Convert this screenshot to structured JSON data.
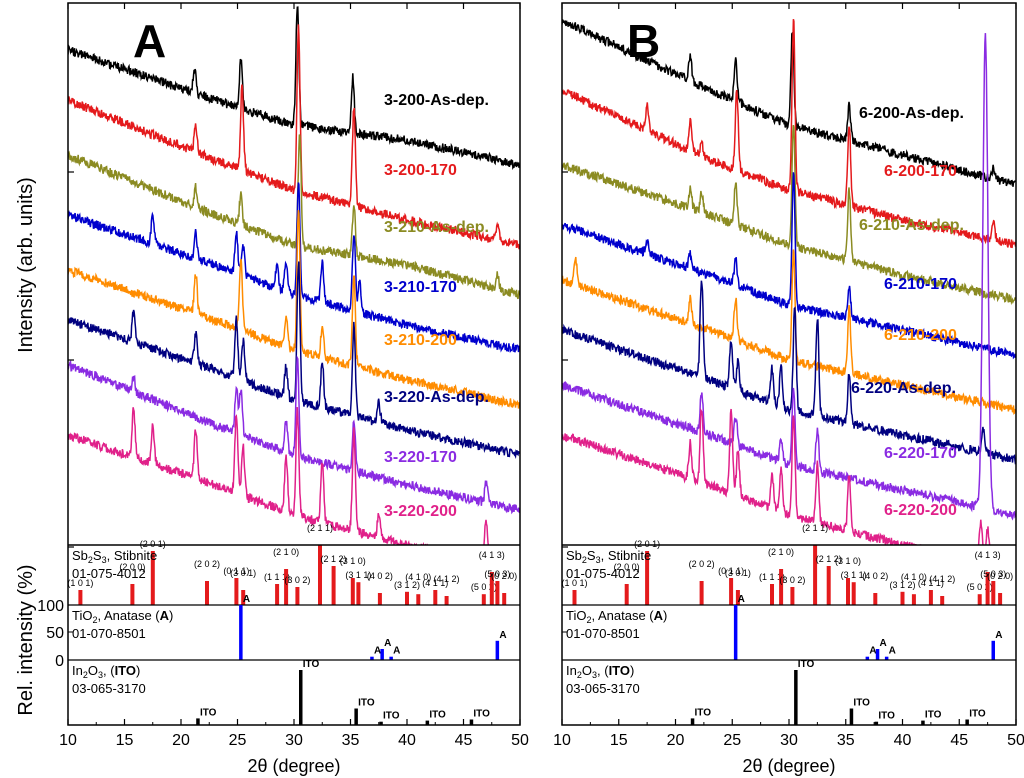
{
  "chart_data": [
    {
      "type": "line",
      "panel_label": "A",
      "xlabel": "2θ (degree)",
      "ylabel": "Intensity (arb. units)",
      "xlim": [
        10,
        50
      ],
      "x_ticks": [
        10,
        15,
        20,
        25,
        30,
        35,
        40,
        45,
        50
      ],
      "y_ticks_labeled": false,
      "series": [
        {
          "name": "3-200-As-dep.",
          "color": "#000000",
          "baseline": [
            [
              10,
              0.33
            ],
            [
              23,
              0.23
            ],
            [
              30,
              0.18
            ],
            [
              40,
              0.15
            ],
            [
              50,
              0.1
            ]
          ],
          "peaks": [
            [
              21.2,
              0.05
            ],
            [
              25.3,
              0.1
            ],
            [
              30.3,
              0.24
            ],
            [
              35.2,
              0.11
            ]
          ]
        },
        {
          "name": "3-200-170",
          "color": "#e41a1c",
          "baseline": [
            [
              10,
              0.32
            ],
            [
              23,
              0.2
            ],
            [
              30,
              0.14
            ],
            [
              40,
              0.08
            ],
            [
              50,
              0.03
            ]
          ],
          "peaks": [
            [
              21.3,
              0.05
            ],
            [
              25.4,
              0.17
            ],
            [
              30.4,
              0.33
            ],
            [
              35.3,
              0.2
            ],
            [
              48.0,
              0.03
            ]
          ]
        },
        {
          "name": "3-210-As-dep.",
          "color": "#8b8b22",
          "baseline": [
            [
              10,
              0.32
            ],
            [
              23,
              0.2
            ],
            [
              30,
              0.14
            ],
            [
              40,
              0.1
            ],
            [
              50,
              0.04
            ]
          ],
          "peaks": [
            [
              21.3,
              0.04
            ],
            [
              25.3,
              0.06
            ],
            [
              30.5,
              0.23
            ],
            [
              35.3,
              0.1
            ],
            [
              48.0,
              0.03
            ]
          ]
        },
        {
          "name": "3-210-170",
          "color": "#0000cd",
          "baseline": [
            [
              10,
              0.3
            ],
            [
              23,
              0.2
            ],
            [
              30,
              0.14
            ],
            [
              40,
              0.08
            ],
            [
              50,
              0.03
            ]
          ],
          "peaks": [
            [
              17.5,
              0.06
            ],
            [
              21.3,
              0.05
            ],
            [
              24.9,
              0.08
            ],
            [
              25.5,
              0.06
            ],
            [
              28.5,
              0.05
            ],
            [
              29.3,
              0.06
            ],
            [
              30.4,
              0.23
            ],
            [
              32.5,
              0.08
            ],
            [
              35.3,
              0.16
            ],
            [
              35.8,
              0.06
            ]
          ]
        },
        {
          "name": "3-210-200",
          "color": "#ff8c00",
          "baseline": [
            [
              10,
              0.3
            ],
            [
              23,
              0.2
            ],
            [
              30,
              0.14
            ],
            [
              40,
              0.08
            ],
            [
              50,
              0.03
            ]
          ],
          "peaks": [
            [
              21.3,
              0.08
            ],
            [
              25.3,
              0.14
            ],
            [
              29.3,
              0.06
            ],
            [
              30.4,
              0.28
            ],
            [
              32.5,
              0.06
            ],
            [
              35.3,
              0.18
            ]
          ]
        },
        {
          "name": "3-220-As-dep.",
          "color": "#000080",
          "baseline": [
            [
              10,
              0.3
            ],
            [
              23,
              0.2
            ],
            [
              30,
              0.14
            ],
            [
              40,
              0.08
            ],
            [
              50,
              0.03
            ]
          ],
          "peaks": [
            [
              15.8,
              0.06
            ],
            [
              21.3,
              0.06
            ],
            [
              24.9,
              0.12
            ],
            [
              25.5,
              0.08
            ],
            [
              29.3,
              0.06
            ],
            [
              30.4,
              0.28
            ],
            [
              32.5,
              0.09
            ],
            [
              35.3,
              0.18
            ],
            [
              37.5,
              0.04
            ]
          ]
        },
        {
          "name": "3-220-170",
          "color": "#8a2be2",
          "baseline": [
            [
              10,
              0.32
            ],
            [
              23,
              0.2
            ],
            [
              30,
              0.14
            ],
            [
              40,
              0.08
            ],
            [
              50,
              0.03
            ]
          ],
          "peaks": [
            [
              15.8,
              0.03
            ],
            [
              24.9,
              0.09
            ],
            [
              25.3,
              0.09
            ],
            [
              29.3,
              0.06
            ],
            [
              30.3,
              0.2
            ],
            [
              35.3,
              0.1
            ],
            [
              47.0,
              0.04
            ]
          ]
        },
        {
          "name": "3-220-200",
          "color": "#e0218a",
          "baseline": [
            [
              10,
              0.28
            ],
            [
              23,
              0.18
            ],
            [
              30,
              0.12
            ],
            [
              40,
              0.06
            ],
            [
              50,
              0.02
            ]
          ],
          "peaks": [
            [
              15.8,
              0.1
            ],
            [
              17.5,
              0.08
            ],
            [
              21.3,
              0.1
            ],
            [
              24.9,
              0.16
            ],
            [
              25.5,
              0.1
            ],
            [
              29.3,
              0.11
            ],
            [
              30.3,
              0.21
            ],
            [
              32.5,
              0.12
            ],
            [
              35.3,
              0.2
            ],
            [
              37.5,
              0.05
            ],
            [
              47.0,
              0.08
            ]
          ]
        }
      ],
      "reference_patterns": [
        {
          "name_parts": [
            "Sb",
            "2",
            "S",
            "3",
            ", Stibnite"
          ],
          "card": "01-075-4012",
          "color": "#e41a1c",
          "peaks": [
            [
              11.1,
              25
            ],
            [
              15.7,
              35
            ],
            [
              17.5,
              90
            ],
            [
              22.3,
              40
            ],
            [
              24.9,
              45
            ],
            [
              25.5,
              25
            ],
            [
              28.5,
              35
            ],
            [
              29.3,
              60
            ],
            [
              30.3,
              30
            ],
            [
              32.3,
              100
            ],
            [
              33.5,
              65
            ],
            [
              35.2,
              45
            ],
            [
              35.7,
              38
            ],
            [
              37.6,
              20
            ],
            [
              40.0,
              22
            ],
            [
              41.0,
              18
            ],
            [
              42.5,
              25
            ],
            [
              43.5,
              15
            ],
            [
              46.8,
              18
            ],
            [
              47.5,
              55
            ],
            [
              48.0,
              40
            ],
            [
              48.6,
              20
            ]
          ],
          "peak_labels": [
            "(1 0 1)",
            "(2 0 0)",
            "(2 0 1)",
            "(2 0 2)",
            "(0 1 1)",
            "(3 0 1)",
            "(1 1 1)",
            "(2 1 0)",
            "(3 0 2)",
            "(2 1 1)",
            "(2 1 2)",
            "(3 1 0)",
            "(3 1 1)",
            "(4 0 2)",
            "(3 1 2)",
            "(4 1 0)",
            "(4 1 1)",
            "(4 1 2)",
            "(5 0 2)",
            "(4 1 3)",
            "(5 0 3)",
            "(0 2 0)"
          ]
        },
        {
          "name_parts": [
            "TiO",
            "2",
            ", Anatase (",
            "A",
            ")"
          ],
          "card": "01-070-8501",
          "color": "#0000ff",
          "peaks": [
            [
              25.3,
              100
            ],
            [
              36.9,
              6
            ],
            [
              37.8,
              20
            ],
            [
              38.6,
              6
            ],
            [
              48.0,
              35
            ]
          ],
          "peak_labels": [
            "A",
            "A",
            "A",
            "A",
            "A"
          ]
        },
        {
          "name_parts": [
            "In",
            "2",
            "O",
            "3",
            ", (",
            "ITO",
            ")"
          ],
          "card": "03-065-3170",
          "color": "#000000",
          "peaks": [
            [
              21.5,
              12
            ],
            [
              30.6,
              100
            ],
            [
              35.5,
              30
            ],
            [
              37.7,
              6
            ],
            [
              41.8,
              8
            ],
            [
              45.7,
              10
            ],
            [
              51.0,
              15
            ]
          ],
          "peak_labels": [
            "ITO",
            "ITO",
            "ITO",
            "ITO",
            "ITO",
            "ITO",
            "ITO"
          ]
        }
      ],
      "rel_intensity_ylabel": "Rel. intensity (%)",
      "rel_intensity_ticks": [
        100,
        50,
        0
      ]
    },
    {
      "type": "line",
      "panel_label": "B",
      "xlabel": "2θ (degree)",
      "xlim": [
        10,
        50
      ],
      "x_ticks": [
        10,
        15,
        20,
        25,
        30,
        35,
        40,
        45,
        50
      ],
      "series": [
        {
          "name": "6-200-As-dep.",
          "color": "#000000",
          "baseline": [
            [
              10,
              0.39
            ],
            [
              23,
              0.25
            ],
            [
              30,
              0.18
            ],
            [
              40,
              0.12
            ],
            [
              50,
              0.06
            ]
          ],
          "peaks": [
            [
              21.3,
              0.05
            ],
            [
              25.3,
              0.08
            ],
            [
              30.3,
              0.19
            ],
            [
              35.3,
              0.07
            ],
            [
              48.0,
              0.02
            ]
          ]
        },
        {
          "name": "6-200-170",
          "color": "#e41a1c",
          "baseline": [
            [
              10,
              0.34
            ],
            [
              23,
              0.2
            ],
            [
              30,
              0.14
            ],
            [
              40,
              0.08
            ],
            [
              50,
              0.03
            ]
          ],
          "peaks": [
            [
              17.5,
              0.05
            ],
            [
              21.3,
              0.06
            ],
            [
              22.3,
              0.03
            ],
            [
              25.4,
              0.16
            ],
            [
              30.4,
              0.34
            ],
            [
              35.3,
              0.16
            ],
            [
              48.0,
              0.04
            ]
          ]
        },
        {
          "name": "6-210-As-dep.",
          "color": "#8b8b22",
          "baseline": [
            [
              10,
              0.3
            ],
            [
              23,
              0.2
            ],
            [
              30,
              0.14
            ],
            [
              40,
              0.08
            ],
            [
              50,
              0.03
            ]
          ],
          "peaks": [
            [
              21.3,
              0.04
            ],
            [
              22.3,
              0.04
            ],
            [
              25.3,
              0.08
            ],
            [
              30.4,
              0.25
            ],
            [
              35.3,
              0.14
            ]
          ]
        },
        {
          "name": "6-210-170",
          "color": "#0000cd",
          "baseline": [
            [
              10,
              0.28
            ],
            [
              23,
              0.18
            ],
            [
              30,
              0.12
            ],
            [
              40,
              0.07
            ],
            [
              50,
              0.02
            ]
          ],
          "peaks": [
            [
              17.5,
              0.03
            ],
            [
              21.3,
              0.03
            ],
            [
              25.3,
              0.05
            ],
            [
              30.4,
              0.27
            ],
            [
              35.3,
              0.06
            ]
          ]
        },
        {
          "name": "6-210-200",
          "color": "#ff8c00",
          "baseline": [
            [
              10,
              0.28
            ],
            [
              23,
              0.18
            ],
            [
              30,
              0.12
            ],
            [
              40,
              0.07
            ],
            [
              50,
              0.02
            ]
          ],
          "peaks": [
            [
              11.2,
              0.05
            ],
            [
              21.3,
              0.05
            ],
            [
              25.3,
              0.08
            ],
            [
              30.4,
              0.22
            ],
            [
              35.3,
              0.13
            ]
          ]
        },
        {
          "name": "6-220-As-dep.",
          "color": "#000080",
          "baseline": [
            [
              10,
              0.28
            ],
            [
              23,
              0.18
            ],
            [
              30,
              0.12
            ],
            [
              40,
              0.07
            ],
            [
              50,
              0.02
            ]
          ],
          "peaks": [
            [
              22.3,
              0.2
            ],
            [
              24.9,
              0.1
            ],
            [
              25.5,
              0.06
            ],
            [
              28.5,
              0.07
            ],
            [
              29.3,
              0.08
            ],
            [
              30.5,
              0.21
            ],
            [
              32.5,
              0.2
            ],
            [
              35.3,
              0.1
            ],
            [
              47.1,
              0.05
            ]
          ]
        },
        {
          "name": "6-220-170",
          "color": "#8a2be2",
          "baseline": [
            [
              10,
              0.28
            ],
            [
              23,
              0.18
            ],
            [
              30,
              0.12
            ],
            [
              40,
              0.07
            ],
            [
              50,
              0.02
            ]
          ],
          "peaks": [
            [
              22.3,
              0.08
            ],
            [
              25.3,
              0.06
            ],
            [
              29.3,
              0.05
            ],
            [
              30.4,
              0.16
            ],
            [
              32.5,
              0.08
            ],
            [
              47.3,
              0.95
            ]
          ]
        },
        {
          "name": "6-220-200",
          "color": "#e0218a",
          "baseline": [
            [
              10,
              0.28
            ],
            [
              23,
              0.18
            ],
            [
              30,
              0.12
            ],
            [
              40,
              0.06
            ],
            [
              50,
              0.02
            ]
          ],
          "peaks": [
            [
              21.3,
              0.07
            ],
            [
              22.3,
              0.15
            ],
            [
              24.9,
              0.17
            ],
            [
              25.5,
              0.09
            ],
            [
              28.5,
              0.07
            ],
            [
              29.3,
              0.09
            ],
            [
              30.4,
              0.2
            ],
            [
              32.5,
              0.12
            ],
            [
              35.3,
              0.11
            ],
            [
              46.9,
              0.07
            ],
            [
              47.5,
              0.06
            ]
          ]
        }
      ],
      "reference_patterns_same_as_panel": "A"
    }
  ]
}
